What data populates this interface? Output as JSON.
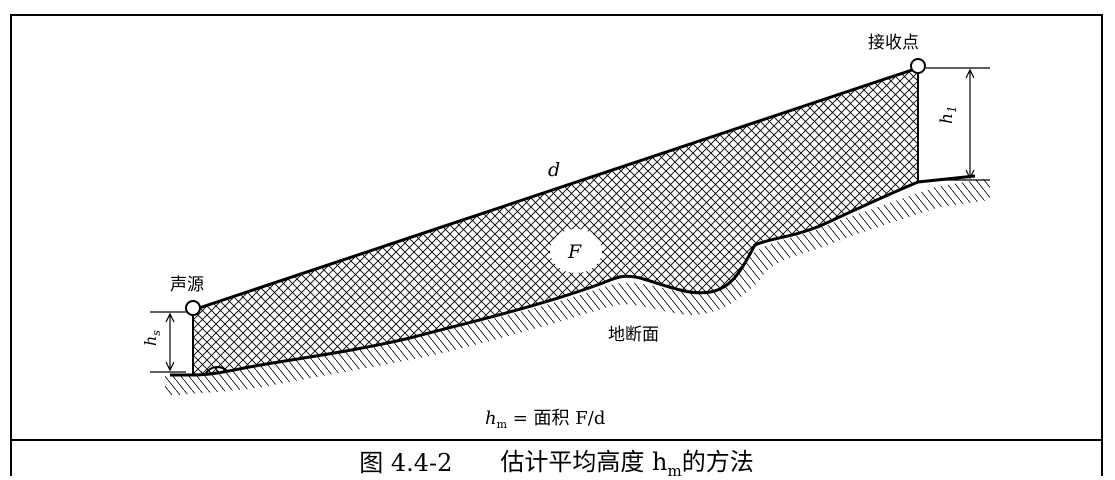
{
  "labels": {
    "receiver": "接收点",
    "source": "声源",
    "distance": "d",
    "area": "F",
    "terrain": "地断面",
    "h1_main": "h",
    "h1_sub": "1",
    "hs_main": "h",
    "hs_sub": "s",
    "formula_h": "h",
    "formula_sub": "m",
    "formula_rest": " = 面积 F/d"
  },
  "caption": {
    "number": "图 4.4-2",
    "text_prefix": "估计平均高度 h",
    "text_sub": "m",
    "text_suffix": "的方法"
  }
}
